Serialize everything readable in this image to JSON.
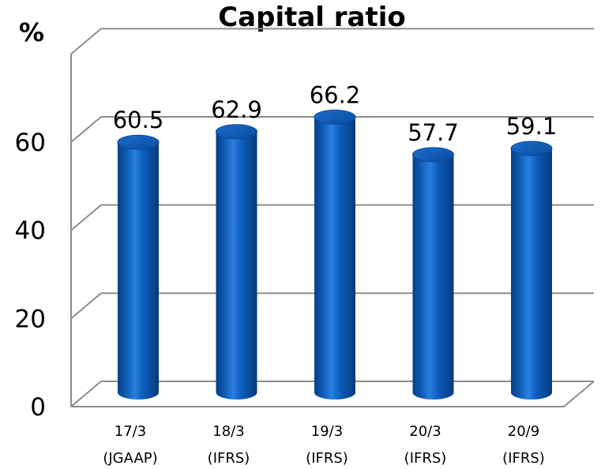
{
  "chart_data": {
    "type": "bar",
    "title": "Capital ratio",
    "unit": "%",
    "categories": [
      {
        "line1": "17/3",
        "line2": "(JGAAP)"
      },
      {
        "line1": "18/3",
        "line2": "(IFRS)"
      },
      {
        "line1": "19/3",
        "line2": "(IFRS)"
      },
      {
        "line1": "20/3",
        "line2": "(IFRS)"
      },
      {
        "line1": "20/9",
        "line2": "(IFRS)"
      }
    ],
    "values": [
      60.5,
      62.9,
      66.2,
      57.7,
      59.1
    ],
    "value_labels": [
      "60.5",
      "62.9",
      "66.2",
      "57.7",
      "59.1"
    ],
    "yticks": [
      "0",
      "20",
      "40",
      "60"
    ],
    "ylim": [
      0,
      80
    ],
    "grid": true,
    "bar_color": "#0B5BB5"
  }
}
